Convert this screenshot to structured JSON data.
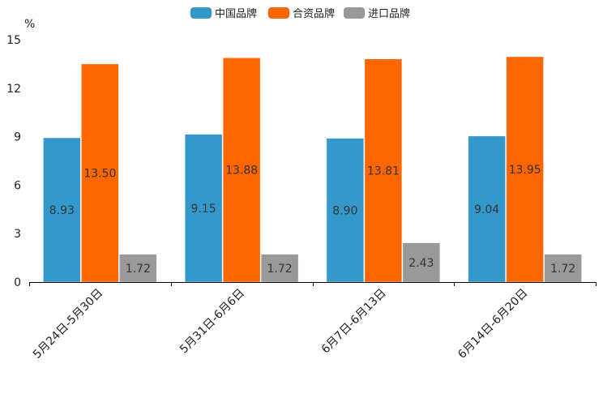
{
  "chart_data": {
    "type": "bar",
    "unit_label": "%",
    "categories": [
      "5月24日-5月30日",
      "5月31日-6月6日",
      "6月7日-6月13日",
      "6月14日-6月20日"
    ],
    "series": [
      {
        "name": "中国品牌",
        "color": "#3399CC",
        "values": [
          8.93,
          9.15,
          8.9,
          9.04
        ]
      },
      {
        "name": "合资品牌",
        "color": "#FF6600",
        "values": [
          13.5,
          13.88,
          13.81,
          13.95
        ]
      },
      {
        "name": "进口品牌",
        "color": "#999999",
        "values": [
          1.72,
          1.72,
          2.43,
          1.72
        ]
      }
    ],
    "labels": [
      [
        "8.93",
        "9.15",
        "8.90",
        "9.04"
      ],
      [
        "13.50",
        "13.88",
        "13.81",
        "13.95"
      ],
      [
        "1.72",
        "1.72",
        "2.43",
        "1.72"
      ]
    ],
    "yticks": [
      "0",
      "3",
      "6",
      "9",
      "12",
      "15"
    ],
    "ylim": [
      0,
      15
    ],
    "legend_position": "top-center",
    "grid": false
  }
}
